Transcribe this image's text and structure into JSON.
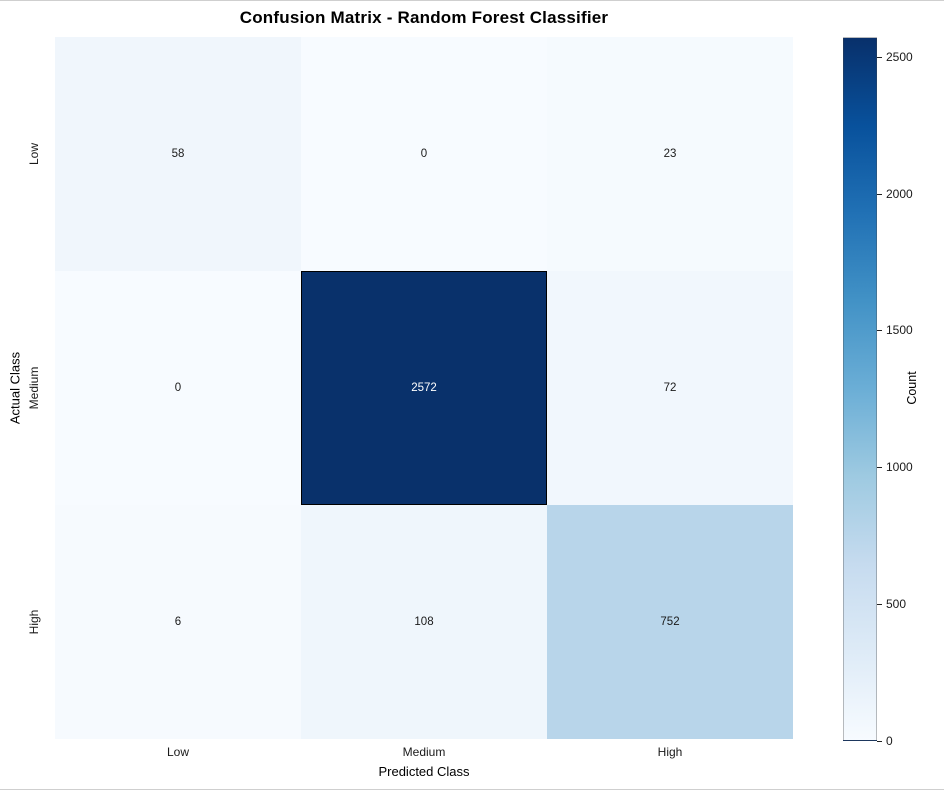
{
  "chart_data": {
    "type": "heatmap",
    "title": "Confusion Matrix - Random Forest Classifier",
    "xlabel": "Predicted Class",
    "ylabel": "Actual Class",
    "x_categories": [
      "Low",
      "Medium",
      "High"
    ],
    "y_categories": [
      "Low",
      "Medium",
      "High"
    ],
    "matrix": [
      [
        58,
        0,
        23
      ],
      [
        0,
        2572,
        72
      ],
      [
        6,
        108,
        752
      ]
    ],
    "vmin": 0,
    "vmax": 2572,
    "colormap": "Blues",
    "legend_position": "right-colorbar",
    "grid": false,
    "cells": [
      [
        {
          "v": "58",
          "bg": "#f0f6fc",
          "fg": "#1a1a1a"
        },
        {
          "v": "0",
          "bg": "#f7fbff",
          "fg": "#1a1a1a"
        },
        {
          "v": "23",
          "bg": "#f5fafe",
          "fg": "#1a1a1a"
        }
      ],
      [
        {
          "v": "0",
          "bg": "#f7fbff",
          "fg": "#1a1a1a"
        },
        {
          "v": "2572",
          "bg": "#09316b",
          "fg": "#ffffff",
          "outlined": true
        },
        {
          "v": "72",
          "bg": "#f1f7fd",
          "fg": "#1a1a1a"
        }
      ],
      [
        {
          "v": "6",
          "bg": "#f6fafe",
          "fg": "#1a1a1a"
        },
        {
          "v": "108",
          "bg": "#eff6fc",
          "fg": "#1a1a1a"
        },
        {
          "v": "752",
          "bg": "#b8d5ea",
          "fg": "#1a1a1a"
        }
      ]
    ],
    "colorbar": {
      "label": "Count",
      "ticks": [
        0,
        500,
        1000,
        1500,
        2000,
        2500
      ],
      "gradient_stops": [
        {
          "pos": 0,
          "color": "#f7fbff"
        },
        {
          "pos": 12.5,
          "color": "#deebf7"
        },
        {
          "pos": 25,
          "color": "#c6dbef"
        },
        {
          "pos": 37.5,
          "color": "#9ecae1"
        },
        {
          "pos": 50,
          "color": "#6baed6"
        },
        {
          "pos": 62.5,
          "color": "#4292c6"
        },
        {
          "pos": 75,
          "color": "#2171b5"
        },
        {
          "pos": 87.5,
          "color": "#08519c"
        },
        {
          "pos": 100,
          "color": "#08306b"
        }
      ]
    }
  }
}
